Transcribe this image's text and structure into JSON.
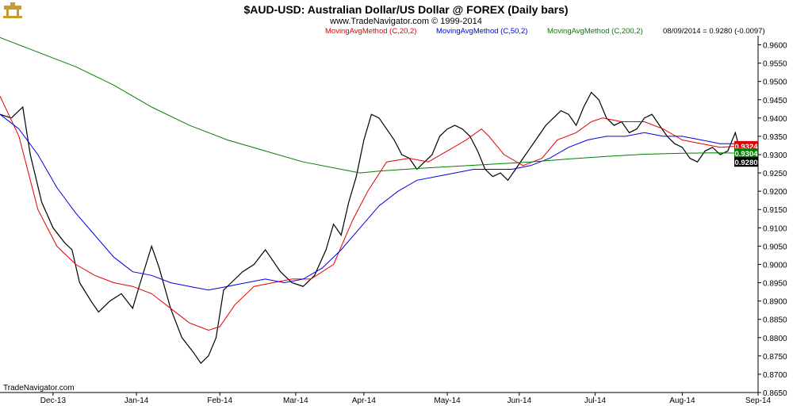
{
  "chart_data": {
    "type": "candlestick",
    "title": "$AUD-USD:  Australian Dollar/US Dollar @ FOREX  (Daily bars)",
    "subtitle": "www.TradeNavigator.com © 1999-2014",
    "watermark": "TradeNavigator.com",
    "indicators": [
      {
        "name": "MovingAvgMethod (C,20,2)",
        "color": "#e00000"
      },
      {
        "name": "MovingAvgMethod (C,50,2)",
        "color": "#0000e0"
      },
      {
        "name": "MovingAvgMethod (C,200,2)",
        "color": "#008000"
      }
    ],
    "last_bar_label": "08/09/2014 = 0.9280 (-0.0097)",
    "price_tags": [
      {
        "value": 0.9324,
        "label": "0.9324",
        "color": "#e00000"
      },
      {
        "value": 0.9304,
        "label": "0.9304",
        "color": "#008000"
      },
      {
        "value": 0.928,
        "label": "0.9280",
        "color": "#000000"
      }
    ],
    "ylim": [
      0.865,
      0.9625
    ],
    "yticks": [
      "0.9600",
      "0.9550",
      "0.9500",
      "0.9450",
      "0.9400",
      "0.9350",
      "0.9300",
      "0.9250",
      "0.9200",
      "0.9150",
      "0.9100",
      "0.9050",
      "0.9000",
      "0.8950",
      "0.8900",
      "0.8850",
      "0.8800",
      "0.8750",
      "0.8700",
      "0.8650"
    ],
    "xaxis": {
      "start_index": 0,
      "end_index": 200
    },
    "xticks": [
      {
        "label": "Dec-13",
        "index": 14
      },
      {
        "label": "Jan-14",
        "index": 36
      },
      {
        "label": "Feb-14",
        "index": 58
      },
      {
        "label": "Mar-14",
        "index": 78
      },
      {
        "label": "Apr-14",
        "index": 96
      },
      {
        "label": "May-14",
        "index": 118
      },
      {
        "label": "Jun-14",
        "index": 137
      },
      {
        "label": "Jul-14",
        "index": 157
      },
      {
        "label": "Aug-14",
        "index": 180
      },
      {
        "label": "Sep-14",
        "index": 200
      }
    ],
    "ma_series": [
      {
        "period": 20,
        "color": "#e00000",
        "points": [
          [
            0,
            0.946
          ],
          [
            5,
            0.935
          ],
          [
            10,
            0.915
          ],
          [
            15,
            0.905
          ],
          [
            20,
            0.9
          ],
          [
            25,
            0.897
          ],
          [
            30,
            0.895
          ],
          [
            35,
            0.894
          ],
          [
            40,
            0.892
          ],
          [
            45,
            0.888
          ],
          [
            50,
            0.884
          ],
          [
            55,
            0.882
          ],
          [
            58,
            0.883
          ],
          [
            62,
            0.889
          ],
          [
            67,
            0.894
          ],
          [
            72,
            0.895
          ],
          [
            77,
            0.896
          ],
          [
            82,
            0.896
          ],
          [
            88,
            0.9
          ],
          [
            93,
            0.912
          ],
          [
            97,
            0.92
          ],
          [
            102,
            0.928
          ],
          [
            108,
            0.929
          ],
          [
            113,
            0.928
          ],
          [
            118,
            0.931
          ],
          [
            123,
            0.934
          ],
          [
            127,
            0.937
          ],
          [
            129,
            0.935
          ],
          [
            133,
            0.93
          ],
          [
            138,
            0.927
          ],
          [
            143,
            0.929
          ],
          [
            147,
            0.934
          ],
          [
            152,
            0.936
          ],
          [
            156,
            0.939
          ],
          [
            159,
            0.94
          ],
          [
            164,
            0.939
          ],
          [
            170,
            0.939
          ],
          [
            175,
            0.937
          ],
          [
            180,
            0.934
          ],
          [
            185,
            0.933
          ],
          [
            190,
            0.932
          ],
          [
            196,
            0.9324
          ]
        ]
      },
      {
        "period": 50,
        "color": "#0000e0",
        "points": [
          [
            0,
            0.941
          ],
          [
            5,
            0.937
          ],
          [
            10,
            0.93
          ],
          [
            15,
            0.921
          ],
          [
            20,
            0.914
          ],
          [
            25,
            0.908
          ],
          [
            30,
            0.902
          ],
          [
            35,
            0.898
          ],
          [
            40,
            0.897
          ],
          [
            45,
            0.895
          ],
          [
            50,
            0.894
          ],
          [
            55,
            0.893
          ],
          [
            60,
            0.894
          ],
          [
            65,
            0.895
          ],
          [
            70,
            0.896
          ],
          [
            75,
            0.895
          ],
          [
            80,
            0.896
          ],
          [
            85,
            0.899
          ],
          [
            90,
            0.904
          ],
          [
            95,
            0.91
          ],
          [
            100,
            0.916
          ],
          [
            105,
            0.92
          ],
          [
            110,
            0.923
          ],
          [
            115,
            0.924
          ],
          [
            120,
            0.925
          ],
          [
            125,
            0.926
          ],
          [
            130,
            0.926
          ],
          [
            135,
            0.926
          ],
          [
            140,
            0.927
          ],
          [
            145,
            0.929
          ],
          [
            150,
            0.932
          ],
          [
            155,
            0.934
          ],
          [
            160,
            0.935
          ],
          [
            165,
            0.935
          ],
          [
            170,
            0.936
          ],
          [
            175,
            0.935
          ],
          [
            180,
            0.935
          ],
          [
            185,
            0.934
          ],
          [
            190,
            0.933
          ],
          [
            196,
            0.933
          ]
        ]
      },
      {
        "period": 200,
        "color": "#008000",
        "points": [
          [
            0,
            0.962
          ],
          [
            10,
            0.958
          ],
          [
            20,
            0.954
          ],
          [
            30,
            0.949
          ],
          [
            40,
            0.943
          ],
          [
            50,
            0.938
          ],
          [
            60,
            0.934
          ],
          [
            70,
            0.931
          ],
          [
            80,
            0.928
          ],
          [
            90,
            0.926
          ],
          [
            95,
            0.925
          ],
          [
            100,
            0.9255
          ],
          [
            110,
            0.9262
          ],
          [
            120,
            0.9268
          ],
          [
            130,
            0.9274
          ],
          [
            140,
            0.928
          ],
          [
            150,
            0.9288
          ],
          [
            160,
            0.9295
          ],
          [
            170,
            0.9301
          ],
          [
            180,
            0.9304
          ],
          [
            190,
            0.9305
          ],
          [
            196,
            0.9304
          ]
        ]
      }
    ],
    "close_series": {
      "color": "#000000",
      "points": [
        [
          0,
          0.941
        ],
        [
          3,
          0.94
        ],
        [
          6,
          0.943
        ],
        [
          8,
          0.93
        ],
        [
          11,
          0.917
        ],
        [
          14,
          0.91
        ],
        [
          17,
          0.906
        ],
        [
          19,
          0.904
        ],
        [
          21,
          0.895
        ],
        [
          24,
          0.89
        ],
        [
          26,
          0.887
        ],
        [
          29,
          0.89
        ],
        [
          32,
          0.892
        ],
        [
          35,
          0.888
        ],
        [
          37,
          0.895
        ],
        [
          40,
          0.905
        ],
        [
          42,
          0.899
        ],
        [
          45,
          0.888
        ],
        [
          48,
          0.88
        ],
        [
          51,
          0.876
        ],
        [
          53,
          0.873
        ],
        [
          55,
          0.875
        ],
        [
          57,
          0.88
        ],
        [
          59,
          0.893
        ],
        [
          61,
          0.895
        ],
        [
          64,
          0.898
        ],
        [
          67,
          0.9
        ],
        [
          70,
          0.904
        ],
        [
          72,
          0.901
        ],
        [
          74,
          0.898
        ],
        [
          77,
          0.895
        ],
        [
          80,
          0.894
        ],
        [
          83,
          0.897
        ],
        [
          86,
          0.904
        ],
        [
          88,
          0.911
        ],
        [
          90,
          0.908
        ],
        [
          92,
          0.917
        ],
        [
          94,
          0.924
        ],
        [
          96,
          0.934
        ],
        [
          98,
          0.941
        ],
        [
          100,
          0.94
        ],
        [
          102,
          0.937
        ],
        [
          104,
          0.934
        ],
        [
          106,
          0.93
        ],
        [
          108,
          0.929
        ],
        [
          110,
          0.926
        ],
        [
          112,
          0.928
        ],
        [
          114,
          0.93
        ],
        [
          116,
          0.935
        ],
        [
          118,
          0.937
        ],
        [
          120,
          0.938
        ],
        [
          122,
          0.937
        ],
        [
          124,
          0.935
        ],
        [
          126,
          0.931
        ],
        [
          128,
          0.926
        ],
        [
          130,
          0.924
        ],
        [
          132,
          0.925
        ],
        [
          134,
          0.923
        ],
        [
          136,
          0.926
        ],
        [
          138,
          0.929
        ],
        [
          140,
          0.932
        ],
        [
          142,
          0.935
        ],
        [
          144,
          0.938
        ],
        [
          146,
          0.94
        ],
        [
          148,
          0.942
        ],
        [
          150,
          0.941
        ],
        [
          152,
          0.938
        ],
        [
          154,
          0.943
        ],
        [
          156,
          0.947
        ],
        [
          158,
          0.945
        ],
        [
          160,
          0.94
        ],
        [
          162,
          0.938
        ],
        [
          164,
          0.939
        ],
        [
          166,
          0.936
        ],
        [
          168,
          0.937
        ],
        [
          170,
          0.94
        ],
        [
          172,
          0.941
        ],
        [
          174,
          0.938
        ],
        [
          176,
          0.935
        ],
        [
          178,
          0.933
        ],
        [
          180,
          0.932
        ],
        [
          182,
          0.929
        ],
        [
          184,
          0.928
        ],
        [
          186,
          0.931
        ],
        [
          188,
          0.932
        ],
        [
          190,
          0.93
        ],
        [
          192,
          0.931
        ],
        [
          194,
          0.936
        ],
        [
          196,
          0.928
        ]
      ]
    }
  }
}
